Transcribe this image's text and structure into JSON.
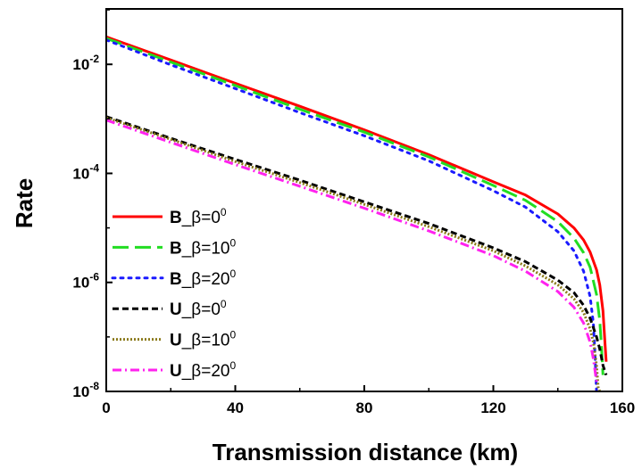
{
  "chart_data": {
    "type": "line",
    "title": "",
    "xlabel": "Transmission distance (km)",
    "ylabel": "Rate",
    "xlim": [
      0,
      160
    ],
    "ylim": [
      1e-08,
      1
    ],
    "yscale": "log",
    "grid": false,
    "legend_position": "lower-left",
    "x_ticks": [
      {
        "value": 0,
        "label": "0"
      },
      {
        "value": 40,
        "label": "40"
      },
      {
        "value": 80,
        "label": "80"
      },
      {
        "value": 120,
        "label": "120"
      },
      {
        "value": 160,
        "label": "160"
      }
    ],
    "y_ticks": [
      {
        "value": 1e-08,
        "base": "10",
        "exp": "-8"
      },
      {
        "value": 1e-06,
        "base": "10",
        "exp": "-6"
      },
      {
        "value": 0.0001,
        "base": "10",
        "exp": "-4"
      },
      {
        "value": 0.01,
        "base": "10",
        "exp": "-2"
      }
    ],
    "series": [
      {
        "name": "B_β=0⁰",
        "label_prefix": "B",
        "label_rest": "_β=0",
        "label_sup": "0",
        "color": "#ff0000",
        "dash": "solid",
        "x": [
          0,
          20,
          40,
          60,
          80,
          100,
          120,
          130,
          140,
          145,
          148,
          150,
          152,
          153,
          154,
          154.5,
          155
        ],
        "y": [
          0.032,
          0.012,
          0.0045,
          0.0017,
          0.00063,
          0.00022,
          7e-05,
          4e-05,
          1.8e-05,
          1e-05,
          6e-06,
          3.6e-06,
          1.7e-06,
          9e-07,
          3e-07,
          1e-07,
          3.5e-08
        ]
      },
      {
        "name": "B_β=10⁰",
        "label_prefix": "B",
        "label_rest": "_β=10",
        "label_sup": "0",
        "color": "#22dd22",
        "dash": "long-dash",
        "x": [
          0,
          20,
          40,
          60,
          80,
          100,
          120,
          130,
          140,
          145,
          148,
          150,
          152,
          153,
          153.5,
          154
        ],
        "y": [
          0.03,
          0.011,
          0.0041,
          0.0015,
          0.00057,
          0.0002,
          6e-05,
          3.2e-05,
          1.3e-05,
          6.5e-06,
          3.5e-06,
          1.9e-06,
          6e-07,
          2e-07,
          7e-08,
          2e-08
        ]
      },
      {
        "name": "B_β=20⁰",
        "label_prefix": "B",
        "label_rest": "_β=20",
        "label_sup": "0",
        "color": "#1a1aff",
        "dash": "dot",
        "x": [
          0,
          20,
          40,
          60,
          80,
          100,
          120,
          130,
          140,
          145,
          148,
          150,
          151,
          151.5,
          152
        ],
        "y": [
          0.028,
          0.0098,
          0.0036,
          0.0013,
          0.00049,
          0.00017,
          4.8e-05,
          2.4e-05,
          8.5e-06,
          3.8e-06,
          1.6e-06,
          5.5e-07,
          1.8e-07,
          5e-08,
          1e-08
        ]
      },
      {
        "name": "U_β=0⁰",
        "label_prefix": "U",
        "label_rest": "_β=0",
        "label_sup": "0",
        "color": "#000000",
        "dash": "dash",
        "x": [
          0,
          20,
          40,
          60,
          80,
          100,
          120,
          130,
          140,
          145,
          148,
          150,
          152,
          153,
          154,
          155
        ],
        "y": [
          0.0011,
          0.00044,
          0.00018,
          7.5e-05,
          3e-05,
          1.2e-05,
          4.3e-06,
          2.4e-06,
          1.1e-06,
          6.5e-07,
          3.8e-07,
          2.2e-07,
          1e-07,
          6e-08,
          3e-08,
          2e-08
        ]
      },
      {
        "name": "U_β=10⁰",
        "label_prefix": "U",
        "label_rest": "_β=10",
        "label_sup": "0",
        "color": "#8b7a1a",
        "dash": "short-dot",
        "x": [
          0,
          20,
          40,
          60,
          80,
          100,
          120,
          130,
          140,
          145,
          148,
          150,
          151,
          152,
          152.5,
          153
        ],
        "y": [
          0.00105,
          0.00042,
          0.000165,
          6.8e-05,
          2.7e-05,
          1.05e-05,
          3.8e-06,
          2e-06,
          9e-07,
          5e-07,
          2.8e-07,
          1.4e-07,
          8e-08,
          3e-08,
          1.2e-08,
          1e-08
        ]
      },
      {
        "name": "U_β=20⁰",
        "label_prefix": "U",
        "label_rest": "_β=20",
        "label_sup": "0",
        "color": "#ff22ee",
        "dash": "dash-dot",
        "x": [
          0,
          20,
          40,
          60,
          80,
          100,
          120,
          130,
          140,
          145,
          148,
          150,
          151,
          152
        ],
        "y": [
          0.00095,
          0.00037,
          0.000145,
          5.8e-05,
          2.3e-05,
          8.8e-06,
          3.1e-06,
          1.6e-06,
          6.8e-07,
          3.5e-07,
          1.8e-07,
          8e-08,
          4e-08,
          1.5e-08
        ]
      }
    ]
  }
}
